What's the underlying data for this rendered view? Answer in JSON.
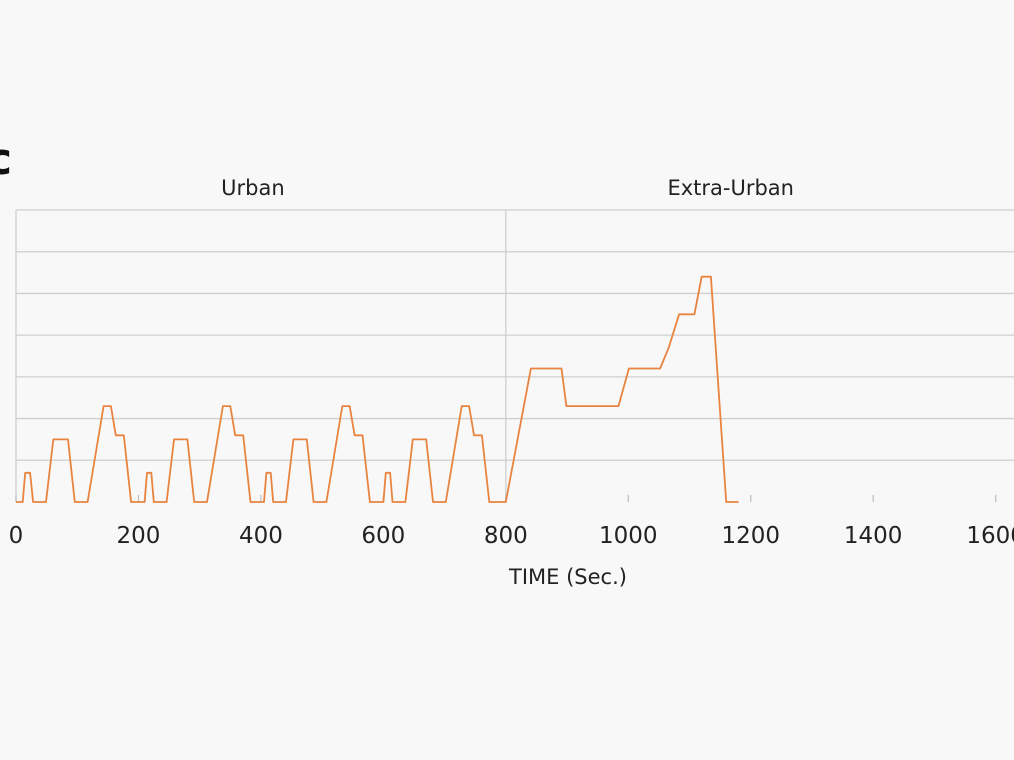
{
  "panel_label": "c",
  "chart_data": {
    "type": "line",
    "title": "",
    "xlabel": "TIME (Sec.)",
    "ylabel": "",
    "xlim": [
      0,
      1600
    ],
    "ylim": [
      0,
      7
    ],
    "x_ticks": [
      0,
      200,
      400,
      600,
      800,
      1000,
      1200,
      1400,
      1600
    ],
    "x_tick_labels": [
      "0",
      "200",
      "400",
      "600",
      "800",
      "1000",
      "1200",
      "1400",
      "1600"
    ],
    "y_gridlines": [
      1,
      2,
      3,
      4,
      5,
      6,
      7
    ],
    "grid": true,
    "line_color": "#e8843f",
    "grid_color": "#cfcfcf",
    "sections": [
      {
        "label": "Urban",
        "start": 0,
        "end": 800
      },
      {
        "label": "Extra-Urban",
        "start": 800,
        "end": 1600
      }
    ],
    "series": [
      {
        "x": [
          0,
          11,
          15,
          23,
          28,
          49,
          61,
          85,
          96,
          117,
          143,
          155,
          163,
          176,
          188,
          195,
          206,
          210,
          214,
          221,
          225,
          246,
          258,
          280,
          291,
          312,
          338,
          350,
          358,
          371,
          383,
          390,
          401,
          405,
          409,
          416,
          420,
          441,
          453,
          475,
          486,
          507,
          533,
          545,
          553,
          566,
          578,
          585,
          596,
          600,
          604,
          611,
          615,
          636,
          648,
          670,
          681,
          702,
          728,
          740,
          748,
          761,
          773,
          780,
          791,
          800,
          841,
          891,
          899,
          984,
          1001,
          1052,
          1066,
          1083,
          1108,
          1120,
          1135,
          1160,
          1180
        ],
        "y": [
          0,
          0,
          0.7,
          0.7,
          0,
          0,
          1.5,
          1.5,
          0,
          0,
          2.3,
          2.3,
          1.6,
          1.6,
          0,
          0,
          0,
          0,
          0.7,
          0.7,
          0,
          0,
          1.5,
          1.5,
          0,
          0,
          2.3,
          2.3,
          1.6,
          1.6,
          0,
          0,
          0,
          0,
          0.7,
          0.7,
          0,
          0,
          1.5,
          1.5,
          0,
          0,
          2.3,
          2.3,
          1.6,
          1.6,
          0,
          0,
          0,
          0,
          0.7,
          0.7,
          0,
          0,
          1.5,
          1.5,
          0,
          0,
          2.3,
          2.3,
          1.6,
          1.6,
          0,
          0,
          0,
          0,
          3.2,
          3.2,
          2.3,
          2.3,
          3.2,
          3.2,
          3.7,
          4.5,
          4.5,
          5.4,
          5.4,
          0,
          0
        ]
      }
    ]
  }
}
